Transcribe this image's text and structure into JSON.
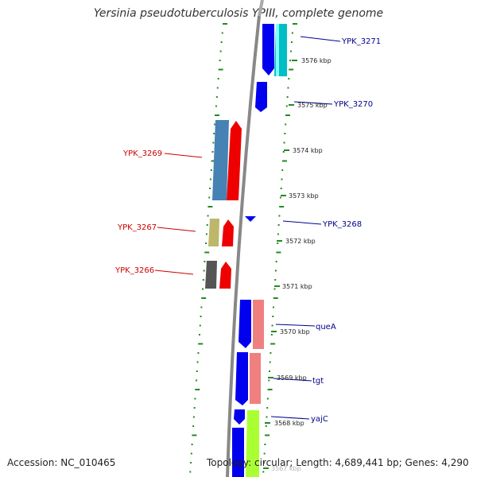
{
  "title": "Yersinia pseudotuberculosis YPIII, complete genome",
  "footer": {
    "accession": "Accession: NC_010465",
    "stats": "Topology: circular; Length: 4,689,441 bp; Genes: 4,290"
  },
  "colors": {
    "forward_gene": "#0000ee",
    "reverse_gene": "#ee0000",
    "forward_label": "#00008b",
    "reverse_label": "#cc0000",
    "tick_line": "#228b22",
    "backbone": "#888888"
  },
  "ticks": [
    "3576 kbp",
    "3575 kbp",
    "3574 kbp",
    "3573 kbp",
    "3572 kbp",
    "3571 kbp",
    "3570 kbp",
    "3569 kbp",
    "3568 kbp",
    "3567 kbp"
  ],
  "gene_labels": [
    {
      "text": "YPK_3271",
      "strand": "forward"
    },
    {
      "text": "YPK_3270",
      "strand": "forward"
    },
    {
      "text": "YPK_3269",
      "strand": "reverse"
    },
    {
      "text": "YPK_3268",
      "strand": "forward"
    },
    {
      "text": "YPK_3267",
      "strand": "reverse"
    },
    {
      "text": "YPK_3266",
      "strand": "reverse"
    },
    {
      "text": "queA",
      "strand": "forward"
    },
    {
      "text": "tgt",
      "strand": "forward"
    },
    {
      "text": "yajC",
      "strand": "forward"
    }
  ]
}
